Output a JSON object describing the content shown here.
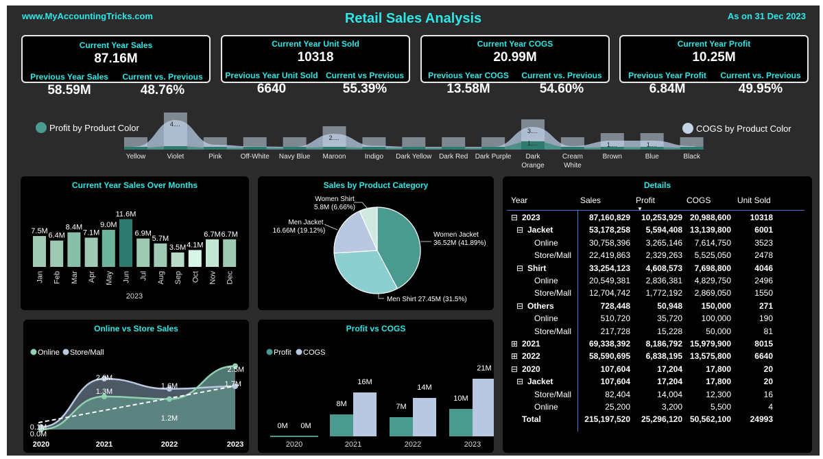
{
  "header": {
    "website": "www.MyAccountingTricks.com",
    "title": "Retail Sales Analysis",
    "as_of": "As on 31 Dec 2023"
  },
  "kpis": [
    {
      "main_label": "Current Year Sales",
      "main_value": "87.16M",
      "prev_label": "Previous Year Sales",
      "prev_value": "58.59M",
      "cmp_label": "Current vs. Previous",
      "cmp_value": "48.76%"
    },
    {
      "main_label": "Current Year Unit Sold",
      "main_value": "10318",
      "prev_label": "Previous Year Unit Sold",
      "prev_value": "6640",
      "cmp_label": "Current vs Previous",
      "cmp_value": "55.39%"
    },
    {
      "main_label": "Current Year COGS",
      "main_value": "20.99M",
      "prev_label": "Previous Year COGS",
      "prev_value": "13.58M",
      "cmp_label": "Current vs. Previous",
      "cmp_value": "54.60%"
    },
    {
      "main_label": "Current Year Profit",
      "main_value": "10.25M",
      "prev_label": "Previous Year Profit",
      "prev_value": "6.84M",
      "cmp_label": "Current vs. Previous",
      "cmp_value": "49.95%"
    }
  ],
  "colors": {
    "accent": "#2ee6e6",
    "teal": "#4a9a90",
    "dark_teal": "#2f6f66",
    "light_blue": "#b8c8e0",
    "pale_green": "#d8f5e8",
    "background": "#2b2b2b",
    "panel": "#000000"
  },
  "chart_data": [
    {
      "type": "area",
      "id": "product_color",
      "legend_left": "Profit by Product Color",
      "legend_right": "COGS by Product Color",
      "categories": [
        "Yellow",
        "Violet",
        "Pink",
        "Off-White",
        "Navy Blue",
        "Maroon",
        "Indigo",
        "Dark Yellow",
        "Dark Red",
        "Dark Purple",
        "Dark Orange",
        "Cream White",
        "Brown",
        "Blue",
        "Black"
      ],
      "cogs": [
        0.15,
        4.0,
        0.4,
        0.15,
        0.1,
        2.0,
        0.25,
        0.1,
        0.1,
        0.1,
        3.0,
        0.2,
        1.0,
        1.0,
        0.2
      ],
      "profit": [
        0.05,
        0.3,
        0.05,
        0.05,
        0.05,
        0.2,
        0.05,
        0.05,
        0.05,
        0.05,
        1.0,
        0.05,
        0.15,
        0.15,
        0.05
      ],
      "labels": [
        {
          "index": 1,
          "text": "4...."
        },
        {
          "index": 5,
          "text": "2...."
        },
        {
          "index": 10,
          "text": "3...."
        },
        {
          "index": 10,
          "text": "1...."
        },
        {
          "index": 12,
          "text": "1...."
        },
        {
          "index": 13,
          "text": "1...."
        }
      ]
    },
    {
      "type": "bar",
      "id": "monthly_sales",
      "title": "Current Year Sales Over Months",
      "xlabel": "2023",
      "categories": [
        "Jan",
        "Feb",
        "Mar",
        "Apr",
        "May",
        "Jun",
        "Jul",
        "Aug",
        "Sep",
        "Oct",
        "Nov",
        "Dec"
      ],
      "values": [
        7.5,
        6.4,
        8.4,
        7.1,
        9.0,
        11.6,
        6.9,
        5.7,
        3.5,
        4.1,
        6.7,
        6.7
      ],
      "value_labels": [
        "7.5M",
        "6.4M",
        "8.4M",
        "7.1M",
        "9.0M",
        "11.6M",
        "6.9M",
        "5.7M",
        "3.5M",
        "4.1M",
        "6.7M",
        "6.7M"
      ],
      "ylim": [
        0,
        12
      ]
    },
    {
      "type": "pie",
      "id": "category_sales",
      "title": "Sales by Product Category",
      "slices": [
        {
          "name": "Women Jacket",
          "value": 36.52,
          "label": "Women Jacket",
          "detail": "36.52M (41.89%)"
        },
        {
          "name": "Men Shirt",
          "value": 27.45,
          "label": "Men Shirt 27.45M (31.5%)",
          "detail": ""
        },
        {
          "name": "Men Jacket",
          "value": 16.66,
          "label": "Men Jacket",
          "detail": "16.66M (19.12%)"
        },
        {
          "name": "Women Shirt",
          "value": 5.8,
          "label": "Women Shirt",
          "detail": "5.8M (6.66%)"
        }
      ]
    },
    {
      "type": "area",
      "id": "online_store",
      "title": "Online vs Store Sales",
      "categories": [
        "2020",
        "2021",
        "2022",
        "2023"
      ],
      "series": [
        {
          "name": "Online",
          "values": [
            0.0,
            1.3,
            1.2,
            2.5
          ],
          "labels": [
            "0.0M",
            "1.3M",
            "1.2M",
            "2.5M"
          ]
        },
        {
          "name": "Store/Mall",
          "values": [
            0.1,
            2.0,
            1.6,
            1.7
          ],
          "labels": [
            "0.1M",
            "2.0M",
            "1.6M",
            "1.7M"
          ]
        }
      ],
      "ylim": [
        0,
        2.6
      ]
    },
    {
      "type": "bar",
      "id": "profit_cogs",
      "title": "Profit vs COGS",
      "categories": [
        "2020",
        "2021",
        "2022",
        "2023"
      ],
      "series": [
        {
          "name": "Profit",
          "values": [
            0.0,
            8,
            7,
            10
          ],
          "labels": [
            "0M",
            "8M",
            "7M",
            "10M"
          ]
        },
        {
          "name": "COGS",
          "values": [
            0.0,
            16,
            14,
            21
          ],
          "labels": [
            "0M",
            "16M",
            "14M",
            "21M"
          ]
        }
      ],
      "ylim": [
        0,
        21
      ]
    },
    {
      "type": "table",
      "id": "details",
      "title": "Details",
      "columns": [
        "Year",
        "Sales",
        "Profit",
        "COGS",
        "Unit Sold"
      ],
      "rows": [
        {
          "level": 0,
          "toggle": "⊟",
          "label": "2023",
          "sales": "87,160,829",
          "profit": "10,253,929",
          "cogs": "20,988,600",
          "units": "10318",
          "bold": true
        },
        {
          "level": 1,
          "toggle": "⊟",
          "label": "Jacket",
          "sales": "53,178,258",
          "profit": "5,594,408",
          "cogs": "13,139,800",
          "units": "6001",
          "bold": true
        },
        {
          "level": 2,
          "toggle": "",
          "label": "Online",
          "sales": "30,758,396",
          "profit": "3,265,146",
          "cogs": "7,614,750",
          "units": "3523",
          "bold": false
        },
        {
          "level": 2,
          "toggle": "",
          "label": "Store/Mall",
          "sales": "22,419,863",
          "profit": "2,329,263",
          "cogs": "5,525,050",
          "units": "2478",
          "bold": false
        },
        {
          "level": 1,
          "toggle": "⊟",
          "label": "Shirt",
          "sales": "33,254,123",
          "profit": "4,608,573",
          "cogs": "7,698,800",
          "units": "4046",
          "bold": true
        },
        {
          "level": 2,
          "toggle": "",
          "label": "Online",
          "sales": "20,549,381",
          "profit": "2,836,381",
          "cogs": "4,829,750",
          "units": "2496",
          "bold": false
        },
        {
          "level": 2,
          "toggle": "",
          "label": "Store/Mall",
          "sales": "12,704,742",
          "profit": "1,772,192",
          "cogs": "2,869,050",
          "units": "1550",
          "bold": false
        },
        {
          "level": 1,
          "toggle": "⊟",
          "label": "Others",
          "sales": "728,448",
          "profit": "50,948",
          "cogs": "150,000",
          "units": "271",
          "bold": true
        },
        {
          "level": 2,
          "toggle": "",
          "label": "Online",
          "sales": "510,720",
          "profit": "35,720",
          "cogs": "100,000",
          "units": "190",
          "bold": false
        },
        {
          "level": 2,
          "toggle": "",
          "label": "Store/Mall",
          "sales": "217,728",
          "profit": "15,228",
          "cogs": "50,000",
          "units": "81",
          "bold": false
        },
        {
          "level": 0,
          "toggle": "⊞",
          "label": "2021",
          "sales": "69,338,392",
          "profit": "8,186,792",
          "cogs": "15,979,900",
          "units": "8015",
          "bold": true
        },
        {
          "level": 0,
          "toggle": "⊞",
          "label": "2022",
          "sales": "58,590,695",
          "profit": "6,838,195",
          "cogs": "13,575,800",
          "units": "6640",
          "bold": true
        },
        {
          "level": 0,
          "toggle": "⊟",
          "label": "2020",
          "sales": "107,604",
          "profit": "17,204",
          "cogs": "17,800",
          "units": "20",
          "bold": true
        },
        {
          "level": 1,
          "toggle": "⊟",
          "label": "Jacket",
          "sales": "107,604",
          "profit": "17,204",
          "cogs": "17,800",
          "units": "20",
          "bold": true
        },
        {
          "level": 2,
          "toggle": "",
          "label": "Store/Mall",
          "sales": "82,404",
          "profit": "14,004",
          "cogs": "12,300",
          "units": "16",
          "bold": false
        },
        {
          "level": 2,
          "toggle": "",
          "label": "Online",
          "sales": "25,200",
          "profit": "3,200",
          "cogs": "5,500",
          "units": "4",
          "bold": false
        },
        {
          "level": 0,
          "toggle": "",
          "label": "Total",
          "sales": "215,197,520",
          "profit": "25,296,120",
          "cogs": "50,562,100",
          "units": "24993",
          "bold": true
        }
      ]
    }
  ]
}
